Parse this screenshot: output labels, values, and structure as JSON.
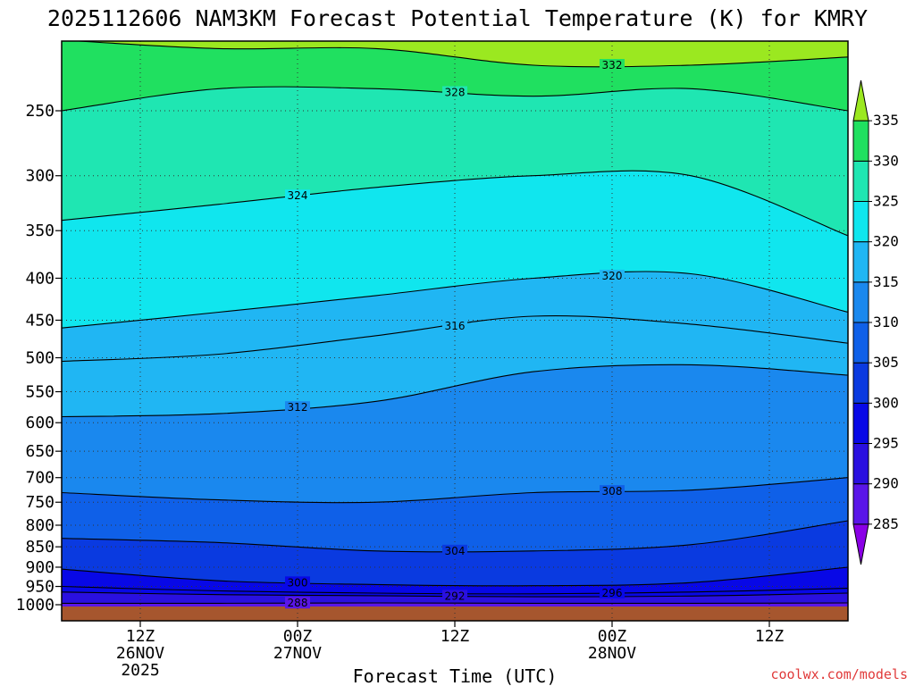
{
  "chart_data": {
    "type": "contour",
    "title": "2025112606 NAM3KM Forecast Potential Temperature (K) for KMRY",
    "xlabel": "Forecast Time (UTC)",
    "ylabel": "",
    "units": "K",
    "y_axis": {
      "scale": "pressure (hPa), log-like, inverted",
      "range": [
        1000,
        200
      ],
      "ticks": [
        1000,
        950,
        900,
        850,
        800,
        750,
        700,
        650,
        600,
        550,
        500,
        450,
        400,
        350,
        300,
        250
      ],
      "tick_labels": [
        "1000",
        "950",
        "900",
        "850",
        "800",
        "750",
        "700",
        "650",
        "600",
        "550",
        "500",
        "450",
        "400",
        "350",
        "300",
        "250"
      ]
    },
    "x_axis": {
      "range_hours": [
        0,
        60
      ],
      "ticks": [
        {
          "hour": 6,
          "label1": "12Z",
          "label2": "26NOV",
          "label3": "2025"
        },
        {
          "hour": 18,
          "label1": "00Z",
          "label2": "27NOV",
          "label3": ""
        },
        {
          "hour": 30,
          "label1": "12Z",
          "label2": "",
          "label3": ""
        },
        {
          "hour": 42,
          "label1": "00Z",
          "label2": "28NOV",
          "label3": ""
        },
        {
          "hour": 54,
          "label1": "12Z",
          "label2": "",
          "label3": ""
        }
      ]
    },
    "colorbar": {
      "levels": [
        285,
        290,
        295,
        300,
        305,
        310,
        315,
        320,
        325,
        330,
        335
      ],
      "labels": [
        "285",
        "290",
        "295",
        "300",
        "305",
        "310",
        "315",
        "320",
        "325",
        "330",
        "335"
      ],
      "colors": [
        "#8a00e6",
        "#5a16e8",
        "#2a10e0",
        "#0808e6",
        "#0a3ae0",
        "#0f60e8",
        "#1a88ee",
        "#20b6f3",
        "#10e6ee",
        "#1fe6b2",
        "#20e060",
        "#9be820"
      ]
    },
    "contours": [
      {
        "level": 288,
        "label": "288",
        "pressures": [
          996,
          996,
          995,
          996,
          996,
          995
        ]
      },
      {
        "level": 292,
        "label": "292",
        "pressures": [
          965,
          972,
          975,
          978,
          976,
          968
        ]
      },
      {
        "level": 296,
        "label": "296",
        "pressures": [
          950,
          962,
          968,
          970,
          965,
          955
        ]
      },
      {
        "level": 300,
        "label": "300",
        "pressures": [
          905,
          935,
          945,
          948,
          940,
          900
        ]
      },
      {
        "level": 304,
        "label": "304",
        "pressures": [
          830,
          840,
          860,
          860,
          845,
          790
        ]
      },
      {
        "level": 308,
        "label": "308",
        "pressures": [
          730,
          745,
          750,
          730,
          725,
          700
        ]
      },
      {
        "level": 312,
        "label": "312",
        "pressures": [
          590,
          585,
          565,
          520,
          510,
          525
        ]
      },
      {
        "level": 316,
        "label": "316",
        "pressures": [
          505,
          495,
          470,
          445,
          455,
          480
        ]
      },
      {
        "level": 320,
        "label": "320",
        "pressures": [
          460,
          440,
          420,
          400,
          395,
          440
        ]
      },
      {
        "level": 324,
        "label": "324",
        "pressures": [
          340,
          325,
          310,
          300,
          300,
          355
        ]
      },
      {
        "level": 328,
        "label": "328",
        "pressures": [
          250,
          235,
          235,
          240,
          235,
          250
        ]
      },
      {
        "level": 332,
        "label": "332",
        "pressures": [
          205,
          210,
          210,
          220,
          220,
          215
        ]
      }
    ],
    "credit": "coolwx.com/models"
  }
}
